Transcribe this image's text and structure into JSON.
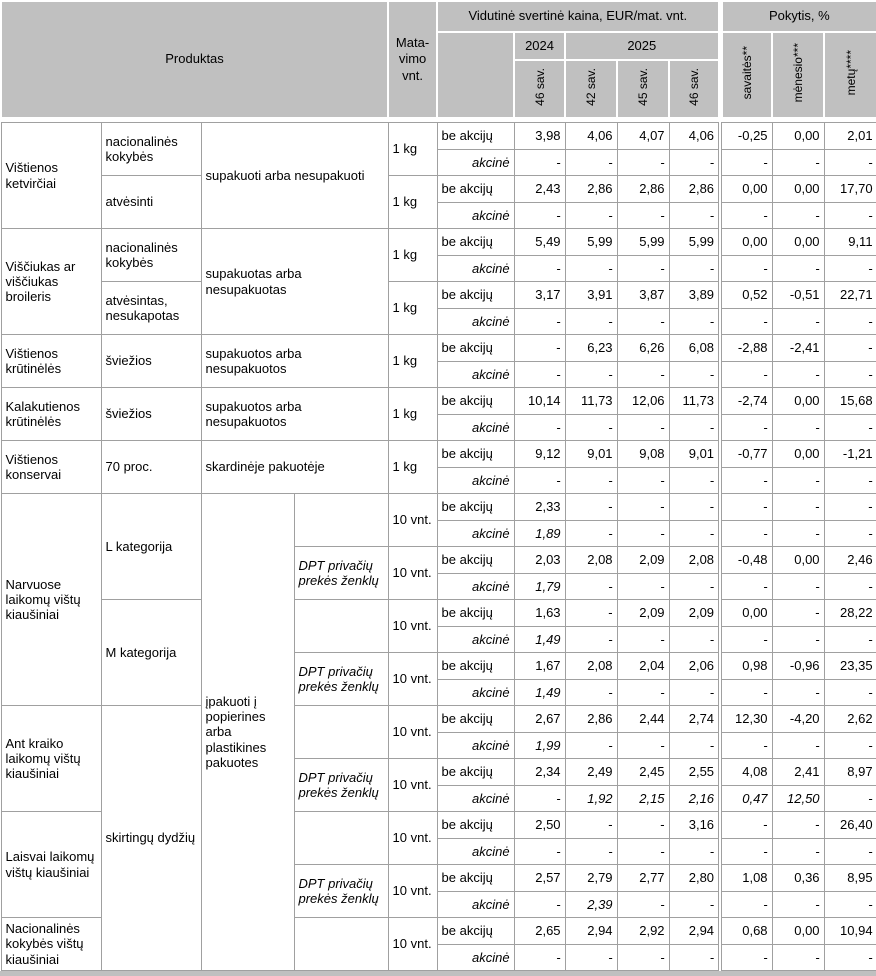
{
  "header": {
    "produktas": "Produktas",
    "matavimo": "Mata-\nvimo\nvnt.",
    "price_title": "Vidutinė svertinė kaina, EUR/mat. vnt.",
    "pokytis_title": "Pokytis, %",
    "y2024": "2024",
    "y2025": "2025",
    "weeks": [
      "46 sav.",
      "42 sav.",
      "45 sav.",
      "46 sav."
    ],
    "pokytis_cols": [
      "savaitės**",
      "mėnesio***",
      "metų****"
    ]
  },
  "rows": [
    [
      {
        "t": "Vištienos ketvirčiai",
        "c": "p",
        "rs": 4
      },
      {
        "t": "nacionalinės kokybės",
        "c": "a",
        "rs": 2
      },
      {
        "t": "supakuoti arba nesupakuoti",
        "c": "k",
        "cs": 2,
        "rs": 4
      },
      {
        "t": "1 kg",
        "c": "u",
        "rs": 2
      },
      {
        "t": "be akcijų",
        "c": "lb"
      },
      {
        "t": "3,98",
        "c": "n"
      },
      {
        "t": "4,06",
        "c": "n"
      },
      {
        "t": "4,07",
        "c": "n"
      },
      {
        "t": "4,06",
        "c": "n"
      },
      {
        "t": "-0,25",
        "c": "n sep"
      },
      {
        "t": "0,00",
        "c": "n"
      },
      {
        "t": "2,01",
        "c": "n"
      }
    ],
    [
      {
        "t": "akcinė",
        "c": "la"
      },
      {
        "t": "-",
        "c": "ni"
      },
      {
        "t": "-",
        "c": "ni"
      },
      {
        "t": "-",
        "c": "ni"
      },
      {
        "t": "-",
        "c": "ni"
      },
      {
        "t": "-",
        "c": "ni sep"
      },
      {
        "t": "-",
        "c": "ni"
      },
      {
        "t": "-",
        "c": "ni"
      }
    ],
    [
      {
        "t": "atvėsinti",
        "c": "a",
        "rs": 2
      },
      {
        "t": "1 kg",
        "c": "u",
        "rs": 2
      },
      {
        "t": "be akcijų",
        "c": "lb"
      },
      {
        "t": "2,43",
        "c": "n"
      },
      {
        "t": "2,86",
        "c": "n"
      },
      {
        "t": "2,86",
        "c": "n"
      },
      {
        "t": "2,86",
        "c": "n"
      },
      {
        "t": "0,00",
        "c": "n sep"
      },
      {
        "t": "0,00",
        "c": "n"
      },
      {
        "t": "17,70",
        "c": "n"
      }
    ],
    [
      {
        "t": "akcinė",
        "c": "la"
      },
      {
        "t": "-",
        "c": "ni"
      },
      {
        "t": "-",
        "c": "ni"
      },
      {
        "t": "-",
        "c": "ni"
      },
      {
        "t": "-",
        "c": "ni"
      },
      {
        "t": "-",
        "c": "ni sep"
      },
      {
        "t": "-",
        "c": "ni"
      },
      {
        "t": "-",
        "c": "ni"
      }
    ],
    [
      {
        "t": "Viščiukas ar viščiukas broileris",
        "c": "p",
        "rs": 4
      },
      {
        "t": "nacionalinės kokybės",
        "c": "a",
        "rs": 2
      },
      {
        "t": "supakuotas arba nesupakuotas",
        "c": "k",
        "cs": 2,
        "rs": 4
      },
      {
        "t": "1 kg",
        "c": "u",
        "rs": 2
      },
      {
        "t": "be akcijų",
        "c": "lb"
      },
      {
        "t": "5,49",
        "c": "n"
      },
      {
        "t": "5,99",
        "c": "n"
      },
      {
        "t": "5,99",
        "c": "n"
      },
      {
        "t": "5,99",
        "c": "n"
      },
      {
        "t": "0,00",
        "c": "n sep"
      },
      {
        "t": "0,00",
        "c": "n"
      },
      {
        "t": "9,11",
        "c": "n"
      }
    ],
    [
      {
        "t": "akcinė",
        "c": "la"
      },
      {
        "t": "-",
        "c": "ni"
      },
      {
        "t": "-",
        "c": "ni"
      },
      {
        "t": "-",
        "c": "ni"
      },
      {
        "t": "-",
        "c": "ni"
      },
      {
        "t": "-",
        "c": "ni sep"
      },
      {
        "t": "-",
        "c": "ni"
      },
      {
        "t": "-",
        "c": "ni"
      }
    ],
    [
      {
        "t": "atvėsintas, nesukapotas",
        "c": "a",
        "rs": 2
      },
      {
        "t": "1 kg",
        "c": "u",
        "rs": 2
      },
      {
        "t": "be akcijų",
        "c": "lb"
      },
      {
        "t": "3,17",
        "c": "n"
      },
      {
        "t": "3,91",
        "c": "n"
      },
      {
        "t": "3,87",
        "c": "n"
      },
      {
        "t": "3,89",
        "c": "n"
      },
      {
        "t": "0,52",
        "c": "n sep"
      },
      {
        "t": "-0,51",
        "c": "n"
      },
      {
        "t": "22,71",
        "c": "n"
      }
    ],
    [
      {
        "t": "akcinė",
        "c": "la"
      },
      {
        "t": "-",
        "c": "ni"
      },
      {
        "t": "-",
        "c": "ni"
      },
      {
        "t": "-",
        "c": "ni"
      },
      {
        "t": "-",
        "c": "ni"
      },
      {
        "t": "-",
        "c": "ni sep"
      },
      {
        "t": "-",
        "c": "ni"
      },
      {
        "t": "-",
        "c": "ni"
      }
    ],
    [
      {
        "t": "Vištienos krūtinėlės",
        "c": "p",
        "rs": 2
      },
      {
        "t": "šviežios",
        "c": "a",
        "rs": 2
      },
      {
        "t": "supakuotos arba nesupakuotos",
        "c": "k",
        "cs": 2,
        "rs": 2
      },
      {
        "t": "1 kg",
        "c": "u",
        "rs": 2
      },
      {
        "t": "be akcijų",
        "c": "lb"
      },
      {
        "t": "-",
        "c": "n"
      },
      {
        "t": "6,23",
        "c": "n"
      },
      {
        "t": "6,26",
        "c": "n"
      },
      {
        "t": "6,08",
        "c": "n"
      },
      {
        "t": "-2,88",
        "c": "n sep"
      },
      {
        "t": "-2,41",
        "c": "n"
      },
      {
        "t": "-",
        "c": "n"
      }
    ],
    [
      {
        "t": "akcinė",
        "c": "la"
      },
      {
        "t": "-",
        "c": "ni"
      },
      {
        "t": "-",
        "c": "ni"
      },
      {
        "t": "-",
        "c": "ni"
      },
      {
        "t": "-",
        "c": "ni"
      },
      {
        "t": "-",
        "c": "ni sep"
      },
      {
        "t": "-",
        "c": "ni"
      },
      {
        "t": "-",
        "c": "ni"
      }
    ],
    [
      {
        "t": "Kalakutienos krūtinėlės",
        "c": "p",
        "rs": 2
      },
      {
        "t": "šviežios",
        "c": "a",
        "rs": 2
      },
      {
        "t": "supakuotos arba nesupakuotos",
        "c": "k",
        "cs": 2,
        "rs": 2
      },
      {
        "t": "1 kg",
        "c": "u",
        "rs": 2
      },
      {
        "t": "be akcijų",
        "c": "lb"
      },
      {
        "t": "10,14",
        "c": "n"
      },
      {
        "t": "11,73",
        "c": "n"
      },
      {
        "t": "12,06",
        "c": "n"
      },
      {
        "t": "11,73",
        "c": "n"
      },
      {
        "t": "-2,74",
        "c": "n sep"
      },
      {
        "t": "0,00",
        "c": "n"
      },
      {
        "t": "15,68",
        "c": "n"
      }
    ],
    [
      {
        "t": "akcinė",
        "c": "la"
      },
      {
        "t": "-",
        "c": "ni"
      },
      {
        "t": "-",
        "c": "ni"
      },
      {
        "t": "-",
        "c": "ni"
      },
      {
        "t": "-",
        "c": "ni"
      },
      {
        "t": "-",
        "c": "ni sep"
      },
      {
        "t": "-",
        "c": "ni"
      },
      {
        "t": "-",
        "c": "ni"
      }
    ],
    [
      {
        "t": "Vištienos konservai",
        "c": "p",
        "rs": 2
      },
      {
        "t": "70 proc.",
        "c": "a",
        "rs": 2
      },
      {
        "t": "skardinėje pakuotėje",
        "c": "k",
        "cs": 2,
        "rs": 2
      },
      {
        "t": "1 kg",
        "c": "u",
        "rs": 2
      },
      {
        "t": "be akcijų",
        "c": "lb"
      },
      {
        "t": "9,12",
        "c": "n"
      },
      {
        "t": "9,01",
        "c": "n"
      },
      {
        "t": "9,08",
        "c": "n"
      },
      {
        "t": "9,01",
        "c": "n"
      },
      {
        "t": "-0,77",
        "c": "n sep"
      },
      {
        "t": "0,00",
        "c": "n"
      },
      {
        "t": "-1,21",
        "c": "n"
      }
    ],
    [
      {
        "t": "akcinė",
        "c": "la"
      },
      {
        "t": "-",
        "c": "ni"
      },
      {
        "t": "-",
        "c": "ni"
      },
      {
        "t": "-",
        "c": "ni"
      },
      {
        "t": "-",
        "c": "ni"
      },
      {
        "t": "-",
        "c": "ni sep"
      },
      {
        "t": "-",
        "c": "ni"
      },
      {
        "t": "-",
        "c": "ni"
      }
    ],
    [
      {
        "t": "Narvuose laikomų vištų kiaušiniai",
        "c": "p",
        "rs": 8
      },
      {
        "t": "L kategorija",
        "c": "a",
        "rs": 4
      },
      {
        "t": "įpakuoti  į popierines arba plastikines pakuotes",
        "c": "k",
        "rs": 18
      },
      {
        "t": "",
        "c": "d",
        "rs": 2
      },
      {
        "t": "10 vnt.",
        "c": "u",
        "rs": 2
      },
      {
        "t": "be akcijų",
        "c": "lb"
      },
      {
        "t": "2,33",
        "c": "n"
      },
      {
        "t": "-",
        "c": "n"
      },
      {
        "t": "-",
        "c": "n"
      },
      {
        "t": "-",
        "c": "n"
      },
      {
        "t": "-",
        "c": "n sep"
      },
      {
        "t": "-",
        "c": "n"
      },
      {
        "t": "-",
        "c": "n"
      }
    ],
    [
      {
        "t": "akcinė",
        "c": "la"
      },
      {
        "t": "1,89",
        "c": "ni"
      },
      {
        "t": "-",
        "c": "ni"
      },
      {
        "t": "-",
        "c": "ni"
      },
      {
        "t": "-",
        "c": "ni"
      },
      {
        "t": "-",
        "c": "ni sep"
      },
      {
        "t": "-",
        "c": "ni"
      },
      {
        "t": "-",
        "c": "ni"
      }
    ],
    [
      {
        "t": "DPT privačių prekės ženklų",
        "c": "d",
        "rs": 2
      },
      {
        "t": "10 vnt.",
        "c": "u",
        "rs": 2
      },
      {
        "t": "be akcijų",
        "c": "lb"
      },
      {
        "t": "2,03",
        "c": "n"
      },
      {
        "t": "2,08",
        "c": "n"
      },
      {
        "t": "2,09",
        "c": "n"
      },
      {
        "t": "2,08",
        "c": "n"
      },
      {
        "t": "-0,48",
        "c": "n sep"
      },
      {
        "t": "0,00",
        "c": "n"
      },
      {
        "t": "2,46",
        "c": "n"
      }
    ],
    [
      {
        "t": "akcinė",
        "c": "la"
      },
      {
        "t": "1,79",
        "c": "ni"
      },
      {
        "t": "-",
        "c": "ni"
      },
      {
        "t": "-",
        "c": "ni"
      },
      {
        "t": "-",
        "c": "ni"
      },
      {
        "t": "-",
        "c": "ni sep"
      },
      {
        "t": "-",
        "c": "ni"
      },
      {
        "t": "-",
        "c": "ni"
      }
    ],
    [
      {
        "t": "M kategorija",
        "c": "a",
        "rs": 4
      },
      {
        "t": "",
        "c": "d",
        "rs": 2
      },
      {
        "t": "10 vnt.",
        "c": "u",
        "rs": 2
      },
      {
        "t": "be akcijų",
        "c": "lb"
      },
      {
        "t": "1,63",
        "c": "n"
      },
      {
        "t": "-",
        "c": "n"
      },
      {
        "t": "2,09",
        "c": "n"
      },
      {
        "t": "2,09",
        "c": "n"
      },
      {
        "t": "0,00",
        "c": "n sep"
      },
      {
        "t": "-",
        "c": "n"
      },
      {
        "t": "28,22",
        "c": "n"
      }
    ],
    [
      {
        "t": "akcinė",
        "c": "la"
      },
      {
        "t": "1,49",
        "c": "ni"
      },
      {
        "t": "-",
        "c": "ni"
      },
      {
        "t": "-",
        "c": "ni"
      },
      {
        "t": "-",
        "c": "ni"
      },
      {
        "t": "-",
        "c": "ni sep"
      },
      {
        "t": "-",
        "c": "ni"
      },
      {
        "t": "-",
        "c": "ni"
      }
    ],
    [
      {
        "t": "DPT privačių prekės ženklų",
        "c": "d",
        "rs": 2
      },
      {
        "t": "10 vnt.",
        "c": "u",
        "rs": 2
      },
      {
        "t": "be akcijų",
        "c": "lb"
      },
      {
        "t": "1,67",
        "c": "n"
      },
      {
        "t": "2,08",
        "c": "n"
      },
      {
        "t": "2,04",
        "c": "n"
      },
      {
        "t": "2,06",
        "c": "n"
      },
      {
        "t": "0,98",
        "c": "n sep"
      },
      {
        "t": "-0,96",
        "c": "n"
      },
      {
        "t": "23,35",
        "c": "n"
      }
    ],
    [
      {
        "t": "akcinė",
        "c": "la"
      },
      {
        "t": "1,49",
        "c": "ni"
      },
      {
        "t": "-",
        "c": "ni"
      },
      {
        "t": "-",
        "c": "ni"
      },
      {
        "t": "-",
        "c": "ni"
      },
      {
        "t": "-",
        "c": "ni sep"
      },
      {
        "t": "-",
        "c": "ni"
      },
      {
        "t": "-",
        "c": "ni"
      }
    ],
    [
      {
        "t": "Ant kraiko laikomų vištų kiaušiniai",
        "c": "p",
        "rs": 4
      },
      {
        "t": "skirtingų dydžių",
        "c": "a",
        "rs": 10
      },
      {
        "t": "",
        "c": "d",
        "rs": 2
      },
      {
        "t": "10 vnt.",
        "c": "u",
        "rs": 2
      },
      {
        "t": "be akcijų",
        "c": "lb"
      },
      {
        "t": "2,67",
        "c": "n"
      },
      {
        "t": "2,86",
        "c": "n"
      },
      {
        "t": "2,44",
        "c": "n"
      },
      {
        "t": "2,74",
        "c": "n"
      },
      {
        "t": "12,30",
        "c": "n sep"
      },
      {
        "t": "-4,20",
        "c": "n"
      },
      {
        "t": "2,62",
        "c": "n"
      }
    ],
    [
      {
        "t": "akcinė",
        "c": "la"
      },
      {
        "t": "1,99",
        "c": "ni"
      },
      {
        "t": "-",
        "c": "ni"
      },
      {
        "t": "-",
        "c": "ni"
      },
      {
        "t": "-",
        "c": "ni"
      },
      {
        "t": "-",
        "c": "ni sep"
      },
      {
        "t": "-",
        "c": "ni"
      },
      {
        "t": "-",
        "c": "ni"
      }
    ],
    [
      {
        "t": "DPT privačių prekės ženklų",
        "c": "d",
        "rs": 2
      },
      {
        "t": "10 vnt.",
        "c": "u",
        "rs": 2
      },
      {
        "t": "be akcijų",
        "c": "lb"
      },
      {
        "t": "2,34",
        "c": "n"
      },
      {
        "t": "2,49",
        "c": "n"
      },
      {
        "t": "2,45",
        "c": "n"
      },
      {
        "t": "2,55",
        "c": "n"
      },
      {
        "t": "4,08",
        "c": "n sep"
      },
      {
        "t": "2,41",
        "c": "n"
      },
      {
        "t": "8,97",
        "c": "n"
      }
    ],
    [
      {
        "t": "akcinė",
        "c": "la"
      },
      {
        "t": "-",
        "c": "ni"
      },
      {
        "t": "1,92",
        "c": "ni"
      },
      {
        "t": "2,15",
        "c": "ni"
      },
      {
        "t": "2,16",
        "c": "ni"
      },
      {
        "t": "0,47",
        "c": "ni sep"
      },
      {
        "t": "12,50",
        "c": "ni"
      },
      {
        "t": "-",
        "c": "ni"
      }
    ],
    [
      {
        "t": "Laisvai laikomų vištų kiaušiniai",
        "c": "p",
        "rs": 4
      },
      {
        "t": "",
        "c": "d",
        "rs": 2
      },
      {
        "t": "10 vnt.",
        "c": "u",
        "rs": 2
      },
      {
        "t": "be akcijų",
        "c": "lb"
      },
      {
        "t": "2,50",
        "c": "n"
      },
      {
        "t": "-",
        "c": "n"
      },
      {
        "t": "-",
        "c": "n"
      },
      {
        "t": "3,16",
        "c": "n"
      },
      {
        "t": "-",
        "c": "n sep"
      },
      {
        "t": "-",
        "c": "n"
      },
      {
        "t": "26,40",
        "c": "n"
      }
    ],
    [
      {
        "t": "akcinė",
        "c": "la"
      },
      {
        "t": "-",
        "c": "ni"
      },
      {
        "t": "-",
        "c": "ni"
      },
      {
        "t": "-",
        "c": "ni"
      },
      {
        "t": "-",
        "c": "ni"
      },
      {
        "t": "-",
        "c": "ni sep"
      },
      {
        "t": "-",
        "c": "ni"
      },
      {
        "t": "-",
        "c": "ni"
      }
    ],
    [
      {
        "t": "DPT privačių prekės ženklų",
        "c": "d",
        "rs": 2
      },
      {
        "t": "10 vnt.",
        "c": "u",
        "rs": 2
      },
      {
        "t": "be akcijų",
        "c": "lb"
      },
      {
        "t": "2,57",
        "c": "n"
      },
      {
        "t": "2,79",
        "c": "n"
      },
      {
        "t": "2,77",
        "c": "n"
      },
      {
        "t": "2,80",
        "c": "n"
      },
      {
        "t": "1,08",
        "c": "n sep"
      },
      {
        "t": "0,36",
        "c": "n"
      },
      {
        "t": "8,95",
        "c": "n"
      }
    ],
    [
      {
        "t": "akcinė",
        "c": "la"
      },
      {
        "t": "-",
        "c": "ni"
      },
      {
        "t": "2,39",
        "c": "ni"
      },
      {
        "t": "-",
        "c": "ni"
      },
      {
        "t": "-",
        "c": "ni"
      },
      {
        "t": "-",
        "c": "ni sep"
      },
      {
        "t": "-",
        "c": "ni"
      },
      {
        "t": "-",
        "c": "ni"
      }
    ],
    [
      {
        "t": "Nacionalinės kokybės vištų kiaušiniai",
        "c": "p",
        "rs": 2
      },
      {
        "t": "",
        "c": "d",
        "rs": 2
      },
      {
        "t": "10 vnt.",
        "c": "u",
        "rs": 2
      },
      {
        "t": "be akcijų",
        "c": "lb"
      },
      {
        "t": "2,65",
        "c": "n"
      },
      {
        "t": "2,94",
        "c": "n"
      },
      {
        "t": "2,92",
        "c": "n"
      },
      {
        "t": "2,94",
        "c": "n"
      },
      {
        "t": "0,68",
        "c": "n sep"
      },
      {
        "t": "0,00",
        "c": "n"
      },
      {
        "t": "10,94",
        "c": "n"
      }
    ],
    [
      {
        "t": "akcinė",
        "c": "la"
      },
      {
        "t": "-",
        "c": "ni"
      },
      {
        "t": "-",
        "c": "ni"
      },
      {
        "t": "-",
        "c": "ni"
      },
      {
        "t": "-",
        "c": "ni"
      },
      {
        "t": "-",
        "c": "ni sep"
      },
      {
        "t": "-",
        "c": "ni"
      },
      {
        "t": "-",
        "c": "ni"
      }
    ]
  ]
}
